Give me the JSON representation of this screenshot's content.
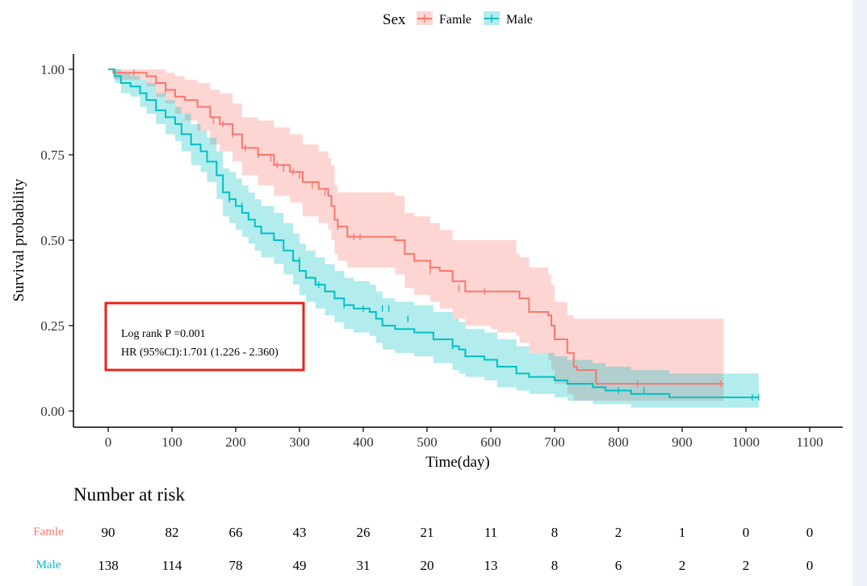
{
  "chart_data": {
    "type": "line",
    "subtype": "kaplan-meier",
    "xlabel": "Time(day)",
    "ylabel": "Survival probability",
    "xlim": [
      0,
      1100
    ],
    "ylim": [
      0,
      1
    ],
    "x_ticks": [
      0,
      100,
      200,
      300,
      400,
      500,
      600,
      700,
      800,
      900,
      1000,
      1100
    ],
    "y_ticks": [
      0.0,
      0.25,
      0.5,
      0.75,
      1.0
    ],
    "y_tick_labels": [
      "0.00",
      "0.25",
      "0.50",
      "0.75",
      "1.00"
    ],
    "grid": false,
    "legend": {
      "title": "Sex",
      "position": "top",
      "entries": [
        "Famle",
        "Male"
      ]
    },
    "series": [
      {
        "name": "Famle",
        "color": "#f8766d",
        "band_color": "#f8766d",
        "x": [
          0,
          8,
          60,
          75,
          90,
          105,
          120,
          140,
          160,
          175,
          195,
          210,
          235,
          260,
          285,
          305,
          330,
          345,
          350,
          355,
          360,
          375,
          415,
          450,
          465,
          480,
          505,
          520,
          540,
          560,
          600,
          610,
          640,
          645,
          660,
          690,
          695,
          700,
          720,
          730,
          735,
          765,
          965
        ],
        "y": [
          1.0,
          0.99,
          0.98,
          0.96,
          0.94,
          0.92,
          0.91,
          0.89,
          0.86,
          0.84,
          0.81,
          0.77,
          0.75,
          0.72,
          0.7,
          0.67,
          0.65,
          0.63,
          0.6,
          0.56,
          0.54,
          0.51,
          0.51,
          0.5,
          0.46,
          0.44,
          0.42,
          0.41,
          0.38,
          0.35,
          0.35,
          0.35,
          0.35,
          0.33,
          0.29,
          0.28,
          0.25,
          0.21,
          0.17,
          0.13,
          0.12,
          0.08,
          0.08
        ],
        "lower": [
          1.0,
          0.97,
          0.95,
          0.92,
          0.9,
          0.87,
          0.85,
          0.82,
          0.78,
          0.76,
          0.73,
          0.69,
          0.66,
          0.63,
          0.61,
          0.57,
          0.55,
          0.53,
          0.5,
          0.46,
          0.44,
          0.42,
          0.42,
          0.4,
          0.36,
          0.34,
          0.32,
          0.3,
          0.27,
          0.25,
          0.24,
          0.23,
          0.22,
          0.2,
          0.17,
          0.15,
          0.12,
          0.08,
          0.05,
          0.03,
          0.03,
          0.03,
          0.03
        ],
        "upper": [
          1.0,
          1.0,
          1.0,
          1.0,
          0.99,
          0.98,
          0.97,
          0.96,
          0.94,
          0.93,
          0.9,
          0.86,
          0.85,
          0.83,
          0.81,
          0.78,
          0.76,
          0.74,
          0.72,
          0.66,
          0.64,
          0.64,
          0.64,
          0.63,
          0.58,
          0.57,
          0.55,
          0.53,
          0.5,
          0.5,
          0.5,
          0.5,
          0.46,
          0.45,
          0.42,
          0.4,
          0.37,
          0.32,
          0.28,
          0.27,
          0.27,
          0.27,
          0.27
        ],
        "censor_x": [
          40,
          90,
          165,
          180,
          195,
          215,
          235,
          255,
          265,
          275,
          290,
          300,
          320,
          340,
          360,
          385,
          395,
          505,
          550,
          590,
          830,
          960
        ],
        "censor_y": [
          0.99,
          0.94,
          0.85,
          0.84,
          0.81,
          0.77,
          0.75,
          0.74,
          0.72,
          0.71,
          0.7,
          0.69,
          0.66,
          0.64,
          0.54,
          0.51,
          0.51,
          0.41,
          0.36,
          0.35,
          0.08,
          0.08
        ]
      },
      {
        "name": "Male",
        "color": "#00bfc4",
        "band_color": "#00bfc4",
        "x": [
          0,
          10,
          20,
          35,
          50,
          60,
          75,
          90,
          105,
          115,
          130,
          145,
          155,
          170,
          180,
          190,
          200,
          210,
          220,
          230,
          240,
          260,
          275,
          290,
          300,
          310,
          325,
          340,
          355,
          370,
          385,
          400,
          410,
          420,
          430,
          450,
          480,
          510,
          540,
          550,
          560,
          590,
          610,
          640,
          660,
          700,
          720,
          740,
          760,
          780,
          800,
          820,
          880,
          1020
        ],
        "y": [
          1.0,
          0.98,
          0.96,
          0.95,
          0.93,
          0.91,
          0.88,
          0.86,
          0.84,
          0.81,
          0.78,
          0.76,
          0.73,
          0.69,
          0.64,
          0.62,
          0.6,
          0.58,
          0.56,
          0.54,
          0.52,
          0.5,
          0.47,
          0.44,
          0.41,
          0.39,
          0.37,
          0.35,
          0.33,
          0.31,
          0.3,
          0.3,
          0.29,
          0.27,
          0.25,
          0.24,
          0.23,
          0.21,
          0.19,
          0.18,
          0.16,
          0.15,
          0.13,
          0.11,
          0.1,
          0.09,
          0.08,
          0.08,
          0.07,
          0.06,
          0.06,
          0.05,
          0.04,
          0.04
        ],
        "lower": [
          1.0,
          0.96,
          0.93,
          0.92,
          0.89,
          0.87,
          0.84,
          0.81,
          0.79,
          0.76,
          0.72,
          0.7,
          0.67,
          0.62,
          0.57,
          0.55,
          0.53,
          0.51,
          0.49,
          0.47,
          0.45,
          0.43,
          0.4,
          0.37,
          0.34,
          0.32,
          0.3,
          0.28,
          0.26,
          0.24,
          0.23,
          0.23,
          0.22,
          0.2,
          0.18,
          0.17,
          0.16,
          0.14,
          0.12,
          0.11,
          0.1,
          0.09,
          0.07,
          0.06,
          0.05,
          0.04,
          0.03,
          0.03,
          0.02,
          0.02,
          0.02,
          0.01,
          0.01,
          0.01
        ],
        "upper": [
          1.0,
          1.0,
          0.99,
          0.98,
          0.97,
          0.96,
          0.93,
          0.91,
          0.89,
          0.87,
          0.84,
          0.82,
          0.8,
          0.76,
          0.71,
          0.7,
          0.68,
          0.66,
          0.64,
          0.62,
          0.6,
          0.58,
          0.55,
          0.52,
          0.49,
          0.47,
          0.45,
          0.43,
          0.41,
          0.39,
          0.38,
          0.38,
          0.37,
          0.35,
          0.33,
          0.32,
          0.31,
          0.29,
          0.27,
          0.26,
          0.24,
          0.23,
          0.21,
          0.19,
          0.17,
          0.16,
          0.15,
          0.15,
          0.14,
          0.13,
          0.13,
          0.12,
          0.11,
          0.11
        ],
        "censor_x": [
          190,
          200,
          210,
          300,
          330,
          370,
          400,
          430,
          440,
          470,
          540,
          800,
          840,
          1010,
          1020
        ],
        "censor_y": [
          0.62,
          0.61,
          0.6,
          0.44,
          0.37,
          0.31,
          0.3,
          0.3,
          0.3,
          0.27,
          0.19,
          0.06,
          0.06,
          0.04,
          0.04
        ]
      }
    ],
    "annotation": {
      "line1": "Log rank P =0.001",
      "line2": "HR (95%CI):1.701 (1.226 - 2.360)"
    },
    "risk_table": {
      "title": "Number at risk",
      "times": [
        0,
        100,
        200,
        300,
        400,
        500,
        600,
        700,
        800,
        900,
        1000,
        1100
      ],
      "rows": [
        {
          "name": "Famle",
          "color": "#f8766d",
          "values": [
            "90",
            "82",
            "66",
            "43",
            "26",
            "21",
            "11",
            "8",
            "2",
            "1",
            "0",
            "0"
          ]
        },
        {
          "name": "Male",
          "color": "#00bfc4",
          "values": [
            "138",
            "114",
            "78",
            "49",
            "31",
            "20",
            "13",
            "8",
            "6",
            "2",
            "2",
            "0"
          ]
        }
      ]
    }
  }
}
